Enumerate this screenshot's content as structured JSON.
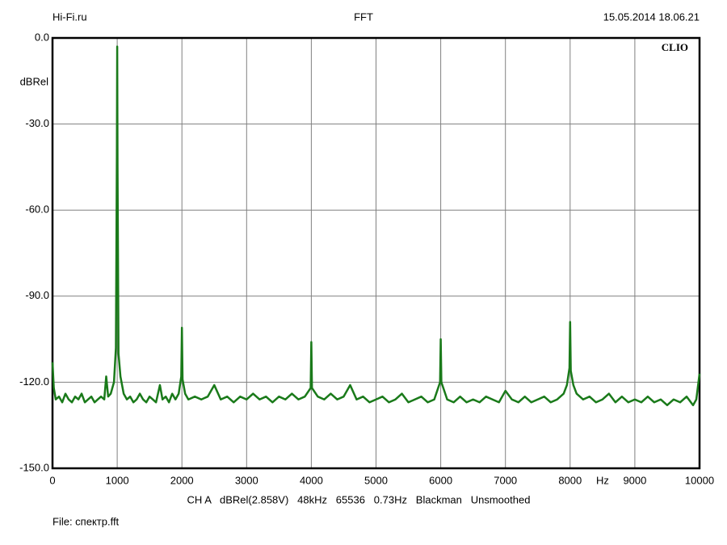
{
  "chart_data": {
    "type": "line",
    "title": "FFT",
    "header_left": "Hi-Fi.ru",
    "header_right": "15.05.2014 18.06.21",
    "brand": "CLIO",
    "y_label": "dBRel",
    "x_label": "Hz",
    "footer": "CH A   dBRel(2.858V)   48kHz   65536   0.73Hz   Blackman   Unsmoothed",
    "file": "File: спектр.fft",
    "xlim": [
      0,
      10000
    ],
    "ylim": [
      -150,
      0
    ],
    "xticks": [
      0,
      1000,
      2000,
      3000,
      4000,
      5000,
      6000,
      7000,
      8000,
      9000,
      10000
    ],
    "yticks": [
      {
        "value": -150,
        "label": "-150.0"
      },
      {
        "value": -120,
        "label": "-120.0"
      },
      {
        "value": -90,
        "label": "-90.0"
      },
      {
        "value": -60,
        "label": "-60.0"
      },
      {
        "value": -30,
        "label": "-30.0"
      },
      {
        "value": 0,
        "label": "0.0"
      }
    ],
    "grid": true,
    "x": [
      0,
      20,
      50,
      100,
      150,
      200,
      250,
      300,
      350,
      400,
      450,
      500,
      550,
      600,
      650,
      700,
      750,
      800,
      830,
      860,
      900,
      950,
      980,
      995,
      1000,
      1005,
      1020,
      1050,
      1100,
      1150,
      1200,
      1250,
      1300,
      1350,
      1400,
      1450,
      1500,
      1550,
      1600,
      1660,
      1700,
      1750,
      1800,
      1850,
      1900,
      1950,
      1990,
      2000,
      2010,
      2050,
      2100,
      2200,
      2300,
      2400,
      2500,
      2600,
      2700,
      2800,
      2900,
      3000,
      3100,
      3200,
      3300,
      3400,
      3500,
      3600,
      3700,
      3800,
      3900,
      3990,
      4000,
      4010,
      4100,
      4200,
      4300,
      4400,
      4500,
      4600,
      4700,
      4800,
      4900,
      5000,
      5100,
      5200,
      5300,
      5400,
      5500,
      5600,
      5700,
      5800,
      5900,
      5990,
      6000,
      6010,
      6100,
      6200,
      6300,
      6400,
      6500,
      6600,
      6700,
      6800,
      6900,
      7000,
      7100,
      7200,
      7300,
      7400,
      7500,
      7600,
      7700,
      7800,
      7900,
      7950,
      7990,
      8000,
      8010,
      8050,
      8100,
      8200,
      8300,
      8400,
      8500,
      8600,
      8700,
      8800,
      8900,
      9000,
      9100,
      9200,
      9300,
      9400,
      9500,
      9600,
      9700,
      9800,
      9900,
      9950,
      10000
    ],
    "series": [
      {
        "color": "#1a7a1a",
        "values": [
          -113,
          -122,
          -126,
          -125,
          -127,
          -124,
          -126,
          -127,
          -125,
          -126,
          -124,
          -127,
          -126,
          -125,
          -127,
          -126,
          -125,
          -126,
          -118,
          -125,
          -124,
          -120,
          -108,
          -40,
          -3,
          -45,
          -110,
          -118,
          -124,
          -126,
          -125,
          -127,
          -126,
          -124,
          -126,
          -127,
          -125,
          -126,
          -127,
          -121,
          -126,
          -125,
          -127,
          -124,
          -126,
          -124,
          -118,
          -101,
          -119,
          -124,
          -126,
          -125,
          -126,
          -125,
          -121,
          -126,
          -125,
          -127,
          -125,
          -126,
          -124,
          -126,
          -125,
          -127,
          -125,
          -126,
          -124,
          -126,
          -125,
          -122,
          -106,
          -122,
          -125,
          -126,
          -124,
          -126,
          -125,
          -121,
          -126,
          -125,
          -127,
          -126,
          -125,
          -127,
          -126,
          -124,
          -127,
          -126,
          -125,
          -127,
          -126,
          -120,
          -105,
          -120,
          -126,
          -127,
          -125,
          -127,
          -126,
          -127,
          -125,
          -126,
          -127,
          -123,
          -126,
          -127,
          -125,
          -127,
          -126,
          -125,
          -127,
          -126,
          -124,
          -121,
          -115,
          -99,
          -116,
          -121,
          -124,
          -126,
          -125,
          -127,
          -126,
          -124,
          -127,
          -125,
          -127,
          -126,
          -127,
          -125,
          -127,
          -126,
          -128,
          -126,
          -127,
          -125,
          -128,
          -126,
          -117
        ]
      }
    ]
  }
}
